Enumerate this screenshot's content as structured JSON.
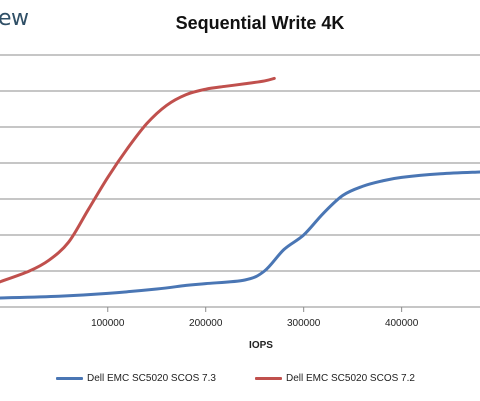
{
  "logo_fragment": "ew",
  "chart_data": {
    "type": "line",
    "title": "Sequential Write 4K",
    "xlabel": "IOPS",
    "ylabel": "",
    "xlim": [
      -10000,
      480000
    ],
    "ylim": [
      0,
      7
    ],
    "x_ticks": [
      100000,
      200000,
      300000,
      400000
    ],
    "x_tick_labels": [
      "100000",
      "200000",
      "300000",
      "400000"
    ],
    "y_gridlines": [
      1,
      2,
      3,
      4,
      5,
      6,
      7
    ],
    "grid": true,
    "legend_position": "bottom",
    "series": [
      {
        "name": "Dell EMC SC5020 SCOS 7.3",
        "color": "#4a76b4",
        "points": [
          [
            -10000,
            0.25
          ],
          [
            50000,
            0.3
          ],
          [
            100000,
            0.38
          ],
          [
            150000,
            0.5
          ],
          [
            180000,
            0.6
          ],
          [
            200000,
            0.65
          ],
          [
            240000,
            0.75
          ],
          [
            260000,
            1.0
          ],
          [
            280000,
            1.6
          ],
          [
            300000,
            2.0
          ],
          [
            320000,
            2.6
          ],
          [
            340000,
            3.1
          ],
          [
            360000,
            3.35
          ],
          [
            380000,
            3.5
          ],
          [
            400000,
            3.6
          ],
          [
            440000,
            3.7
          ],
          [
            480000,
            3.75
          ]
        ]
      },
      {
        "name": "Dell EMC SC5020 SCOS 7.2",
        "color": "#c0504d",
        "points": [
          [
            -10000,
            0.7
          ],
          [
            20000,
            1.0
          ],
          [
            40000,
            1.3
          ],
          [
            60000,
            1.8
          ],
          [
            80000,
            2.7
          ],
          [
            100000,
            3.6
          ],
          [
            120000,
            4.4
          ],
          [
            140000,
            5.1
          ],
          [
            160000,
            5.6
          ],
          [
            180000,
            5.9
          ],
          [
            200000,
            6.05
          ],
          [
            220000,
            6.13
          ],
          [
            240000,
            6.2
          ],
          [
            260000,
            6.28
          ],
          [
            270000,
            6.35
          ]
        ]
      }
    ]
  }
}
